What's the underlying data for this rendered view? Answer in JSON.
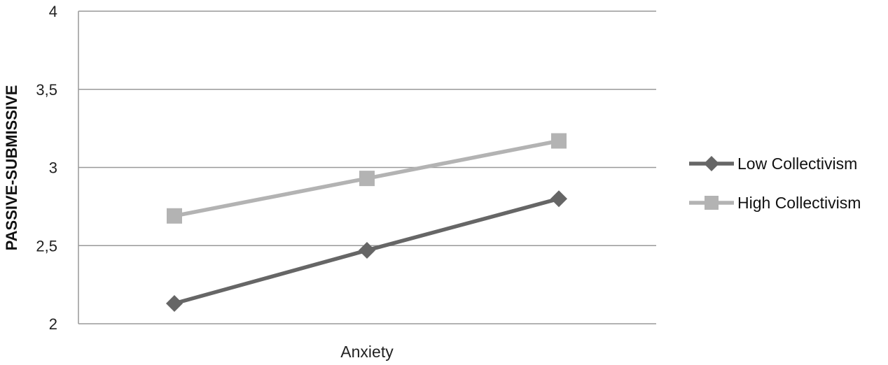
{
  "chart_data": {
    "type": "line",
    "title": "",
    "xlabel": "Anxiety",
    "ylabel": "PASSIVE-SUBMISSIVE",
    "ylim": [
      2,
      4
    ],
    "y_ticks": [
      "2",
      "2,5",
      "3",
      "3,5",
      "4"
    ],
    "y_tick_values": [
      2,
      2.5,
      3,
      3.5,
      4
    ],
    "grid": true,
    "legend_position": "right",
    "x": [
      1,
      2,
      3
    ],
    "series": [
      {
        "name": "Low Collectivism",
        "values": [
          2.13,
          2.47,
          2.8
        ],
        "color": "#666666",
        "marker": "diamond"
      },
      {
        "name": "High Collectivism",
        "values": [
          2.69,
          2.93,
          3.17
        ],
        "color": "#b3b3b3",
        "marker": "square"
      }
    ]
  }
}
